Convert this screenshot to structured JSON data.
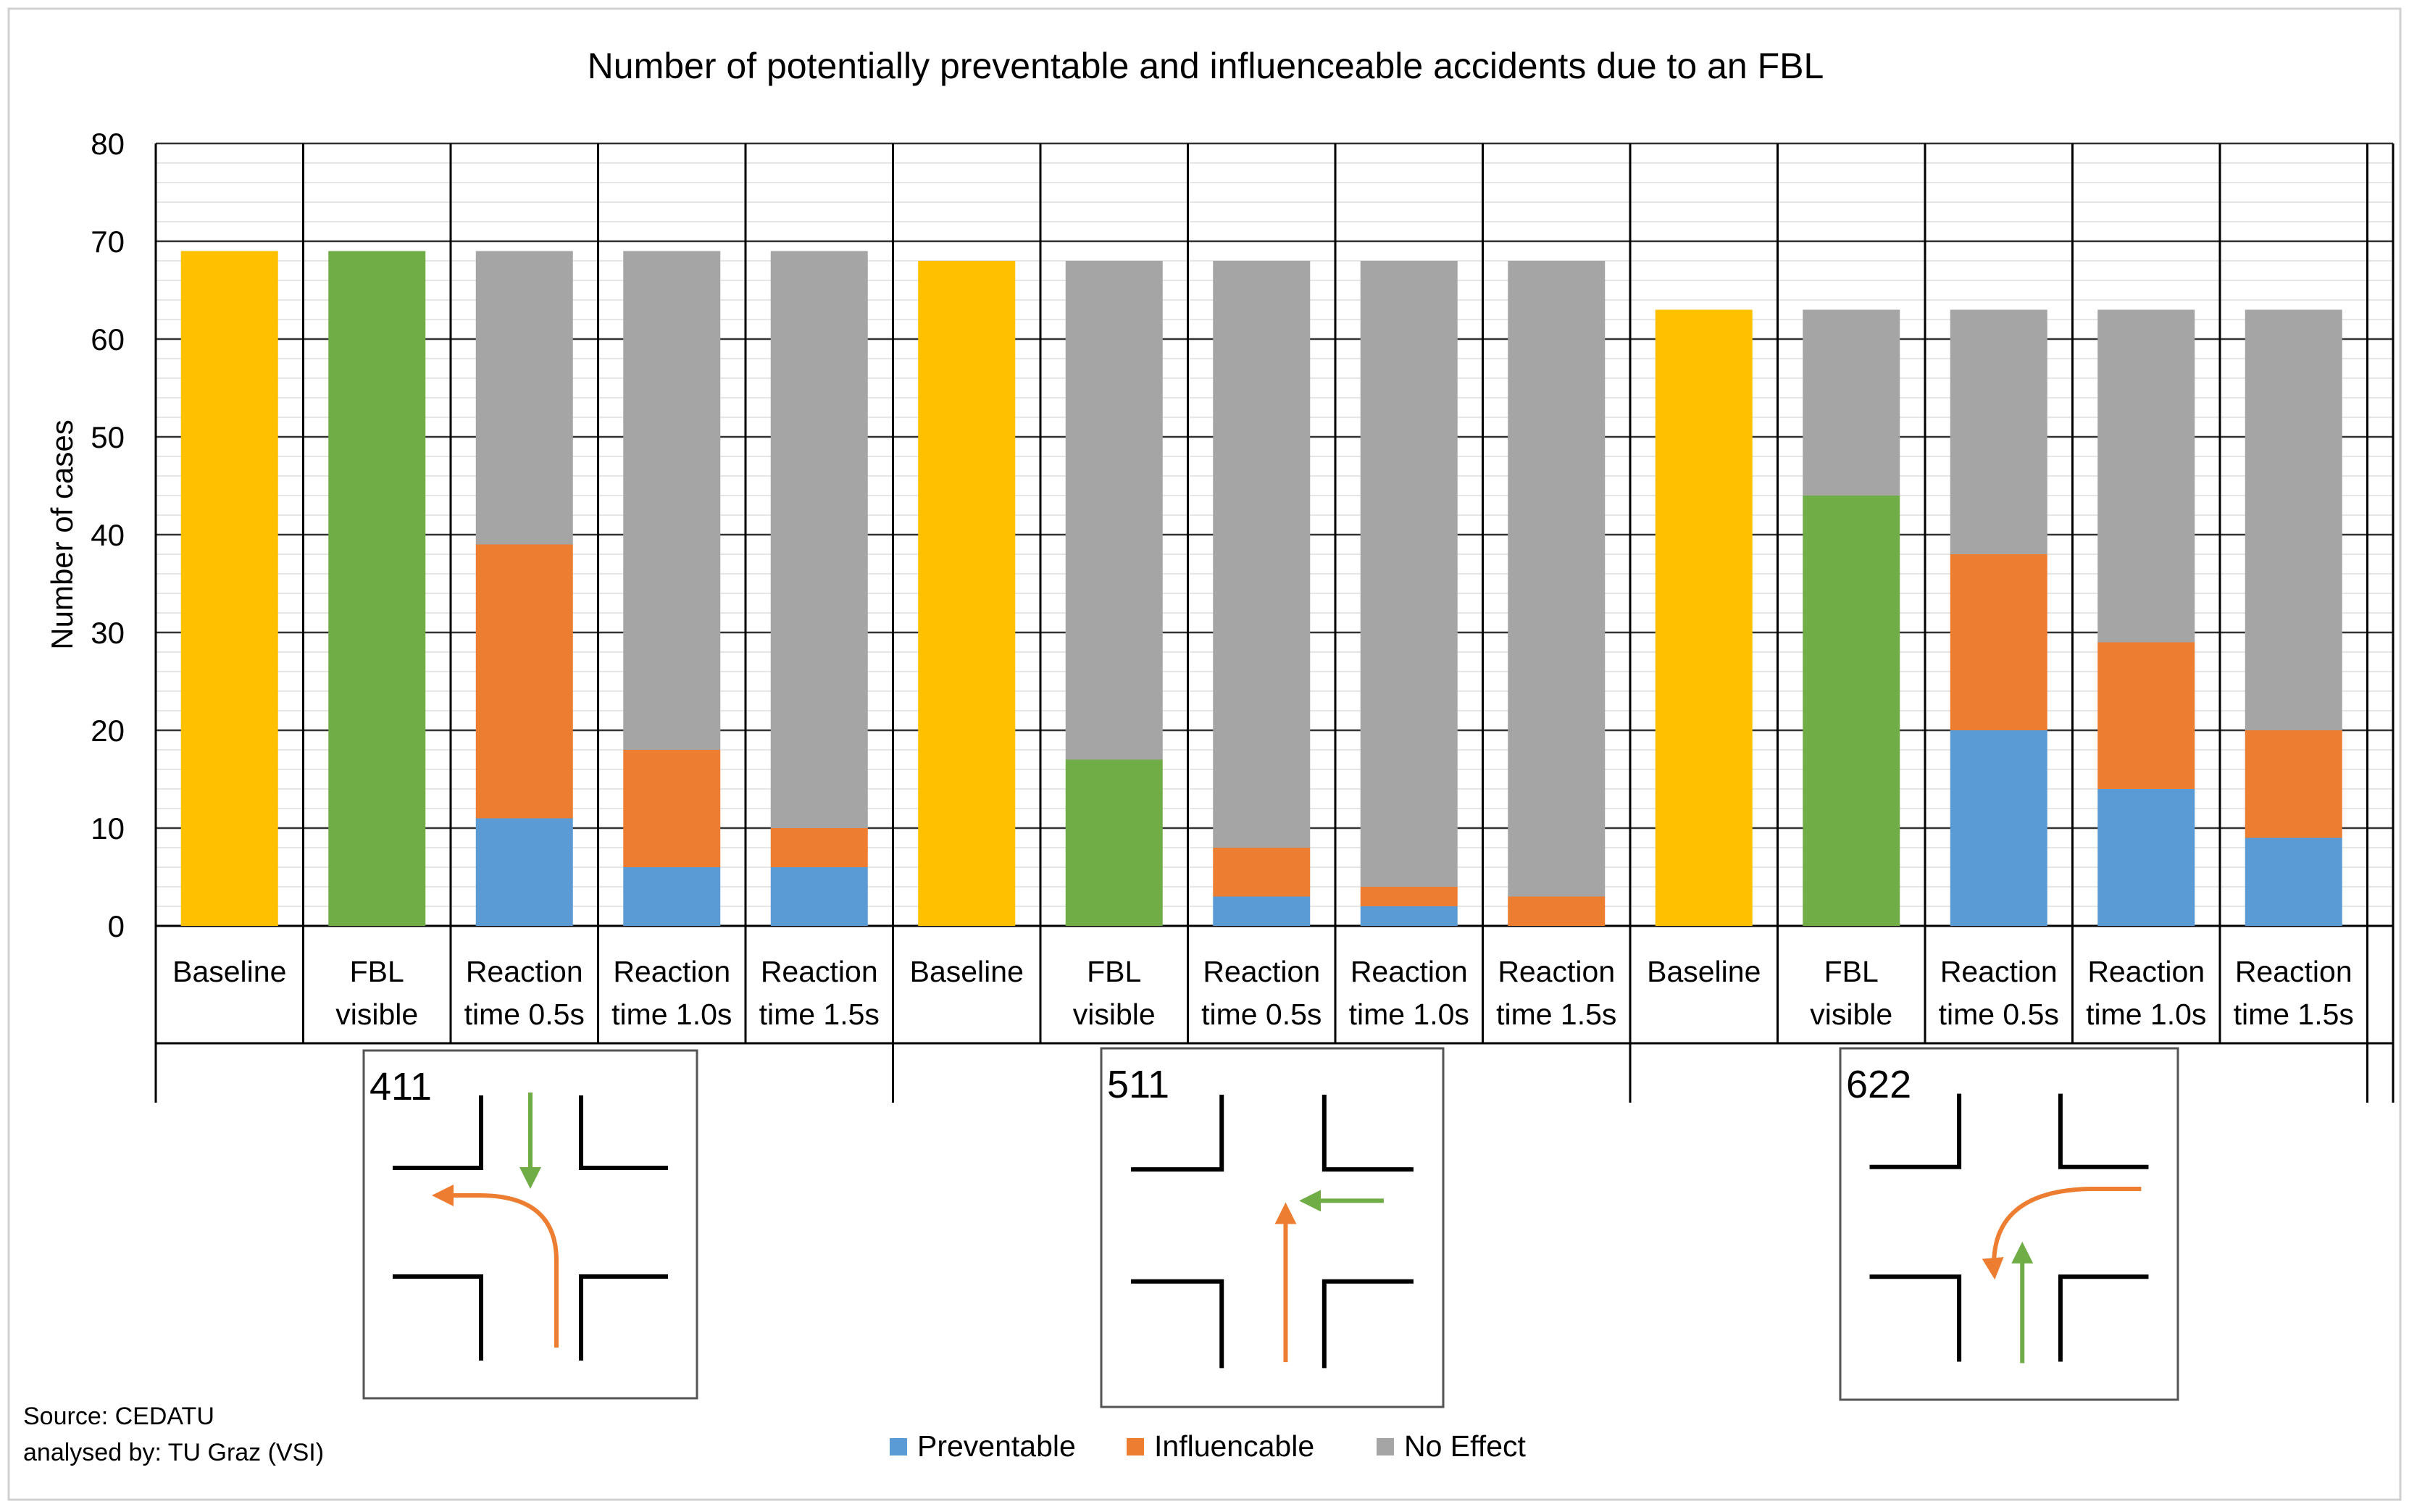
{
  "chart_data": {
    "type": "bar",
    "stacked": true,
    "title": "Number of potentially preventable and influenceable accidents due to an FBL",
    "ylabel": "Number of cases",
    "xlabel": "",
    "ylim": [
      0,
      80
    ],
    "yticks": [
      0,
      10,
      20,
      30,
      40,
      50,
      60,
      70,
      80
    ],
    "grid": true,
    "legend_position": "bottom-center",
    "categories": [
      "Baseline",
      "FBL visible",
      "Reaction time 0.5s",
      "Reaction time 1.0s",
      "Reaction time 1.5s"
    ],
    "category_lines": [
      [
        "Baseline"
      ],
      [
        "FBL",
        "visible"
      ],
      [
        "Reaction",
        "time 0.5s"
      ],
      [
        "Reaction",
        "time 1.0s"
      ],
      [
        "Reaction",
        "time 1.5s"
      ]
    ],
    "groups": [
      {
        "scenario": "411",
        "bars": [
          {
            "segments": [
              {
                "series": "Baseline",
                "value": 69
              }
            ]
          },
          {
            "segments": [
              {
                "series": "FBL visible",
                "value": 69
              }
            ]
          },
          {
            "segments": [
              {
                "series": "Preventable",
                "value": 11
              },
              {
                "series": "Influencable",
                "value": 28
              },
              {
                "series": "No Effect",
                "value": 30
              }
            ]
          },
          {
            "segments": [
              {
                "series": "Preventable",
                "value": 6
              },
              {
                "series": "Influencable",
                "value": 12
              },
              {
                "series": "No Effect",
                "value": 51
              }
            ]
          },
          {
            "segments": [
              {
                "series": "Preventable",
                "value": 6
              },
              {
                "series": "Influencable",
                "value": 4
              },
              {
                "series": "No Effect",
                "value": 59
              }
            ]
          }
        ]
      },
      {
        "scenario": "511",
        "bars": [
          {
            "segments": [
              {
                "series": "Baseline",
                "value": 68
              }
            ]
          },
          {
            "segments": [
              {
                "series": "FBL visible",
                "value": 17
              },
              {
                "series": "No Effect",
                "value": 51
              }
            ]
          },
          {
            "segments": [
              {
                "series": "Preventable",
                "value": 3
              },
              {
                "series": "Influencable",
                "value": 5
              },
              {
                "series": "No Effect",
                "value": 60
              }
            ]
          },
          {
            "segments": [
              {
                "series": "Preventable",
                "value": 2
              },
              {
                "series": "Influencable",
                "value": 2
              },
              {
                "series": "No Effect",
                "value": 64
              }
            ]
          },
          {
            "segments": [
              {
                "series": "Preventable",
                "value": 0
              },
              {
                "series": "Influencable",
                "value": 3
              },
              {
                "series": "No Effect",
                "value": 65
              }
            ]
          }
        ]
      },
      {
        "scenario": "622",
        "bars": [
          {
            "segments": [
              {
                "series": "Baseline",
                "value": 63
              }
            ]
          },
          {
            "segments": [
              {
                "series": "FBL visible",
                "value": 44
              },
              {
                "series": "No Effect",
                "value": 19
              }
            ]
          },
          {
            "segments": [
              {
                "series": "Preventable",
                "value": 20
              },
              {
                "series": "Influencable",
                "value": 18
              },
              {
                "series": "No Effect",
                "value": 25
              }
            ]
          },
          {
            "segments": [
              {
                "series": "Preventable",
                "value": 14
              },
              {
                "series": "Influencable",
                "value": 15
              },
              {
                "series": "No Effect",
                "value": 34
              }
            ]
          },
          {
            "segments": [
              {
                "series": "Preventable",
                "value": 9
              },
              {
                "series": "Influencable",
                "value": 11
              },
              {
                "series": "No Effect",
                "value": 43
              }
            ]
          }
        ]
      }
    ],
    "colors": {
      "Baseline": "#FFC000",
      "FBL visible": "#70AD47",
      "Preventable": "#5B9BD5",
      "Influencable": "#ED7D31",
      "No Effect": "#A5A5A5",
      "arrow_green": "#70AD47",
      "arrow_orange": "#ED7D31"
    },
    "legend": [
      {
        "label": "Preventable",
        "key": "Preventable"
      },
      {
        "label": "Influencable",
        "key": "Influencable"
      },
      {
        "label": "No Effect",
        "key": "No Effect"
      }
    ],
    "source_lines": [
      "Source: CEDATU",
      "analysed by: TU Graz (VSI)"
    ]
  }
}
